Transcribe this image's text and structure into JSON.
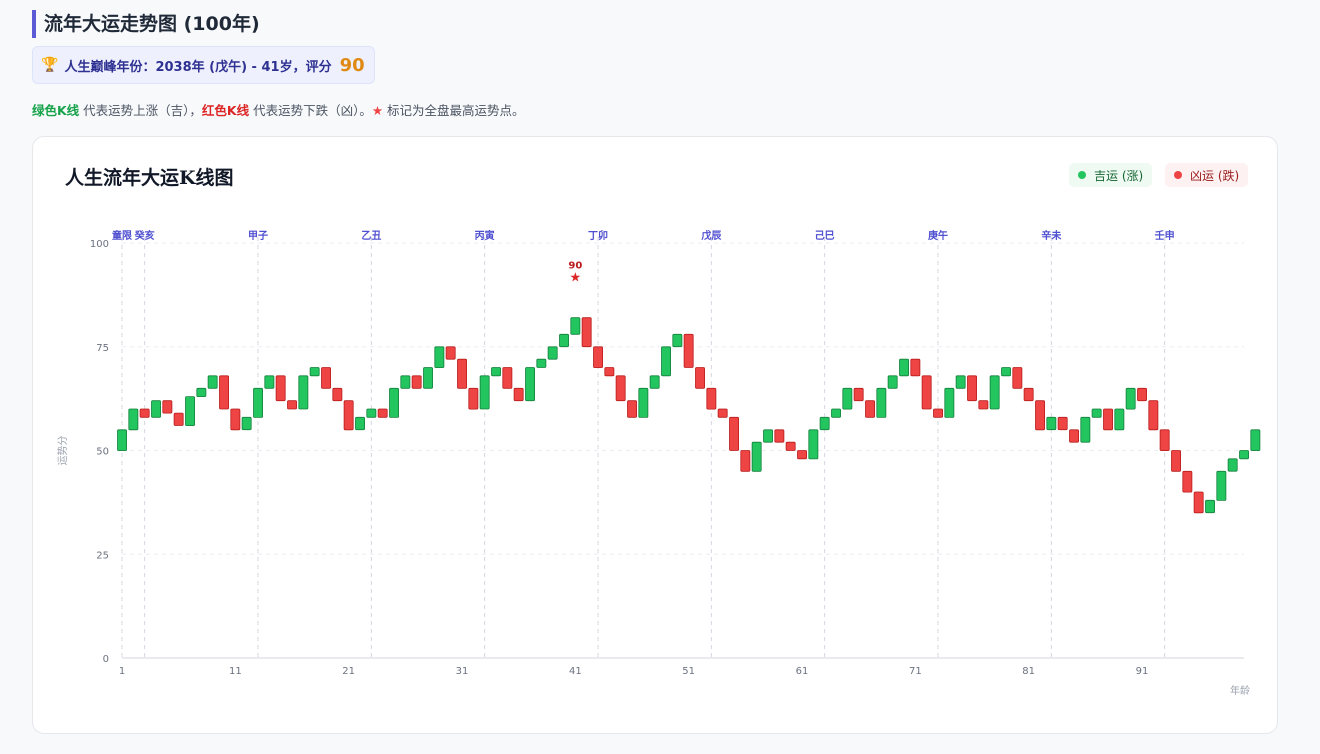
{
  "header": {
    "title": "流年大运走势图 (100年)",
    "peak_label": "人生巅峰年份：2038年 (戊午) - 41岁，评分",
    "peak_score": "90",
    "trophy_icon": "trophy-icon"
  },
  "description": {
    "green_label": "绿色K线",
    "green_text": " 代表运势上涨（吉），",
    "red_label": "红色K线",
    "red_text": " 代表运势下跌（凶）。",
    "star_glyph": "★",
    "star_text": " 标记为全盘最高运势点。"
  },
  "card": {
    "title": "人生流年大运K线图",
    "legend": [
      {
        "label": "吉运 (涨)",
        "color": "#22c55e"
      },
      {
        "label": "凶运 (跌)",
        "color": "#ef4444"
      }
    ]
  },
  "chart_data": {
    "type": "candlestick",
    "ylabel": "运势分",
    "xlabel": "年龄",
    "ylim": [
      0,
      100
    ],
    "yticks": [
      0,
      25,
      50,
      75,
      100
    ],
    "xlim": [
      1,
      100
    ],
    "xticks": [
      1,
      11,
      21,
      31,
      41,
      51,
      61,
      71,
      81,
      91
    ],
    "grid": true,
    "colors": {
      "up": "#22c55e",
      "down": "#ef4444",
      "up_edge": "#15803d",
      "down_edge": "#b91c1c"
    },
    "dayun": [
      {
        "label": "童限",
        "age": 1
      },
      {
        "label": "癸亥",
        "age": 3
      },
      {
        "label": "甲子",
        "age": 13
      },
      {
        "label": "乙丑",
        "age": 23
      },
      {
        "label": "丙寅",
        "age": 33
      },
      {
        "label": "丁卯",
        "age": 43
      },
      {
        "label": "戊辰",
        "age": 53
      },
      {
        "label": "己巳",
        "age": 63
      },
      {
        "label": "庚午",
        "age": 73
      },
      {
        "label": "辛未",
        "age": 83
      },
      {
        "label": "壬申",
        "age": 93
      }
    ],
    "peak": {
      "age": 41,
      "value": 90
    },
    "candles": [
      [
        50,
        55
      ],
      [
        55,
        60
      ],
      [
        60,
        58
      ],
      [
        58,
        62
      ],
      [
        62,
        59
      ],
      [
        59,
        56
      ],
      [
        56,
        63
      ],
      [
        63,
        65
      ],
      [
        65,
        68
      ],
      [
        68,
        60
      ],
      [
        60,
        55
      ],
      [
        55,
        58
      ],
      [
        58,
        65
      ],
      [
        65,
        68
      ],
      [
        68,
        62
      ],
      [
        62,
        60
      ],
      [
        60,
        68
      ],
      [
        68,
        70
      ],
      [
        70,
        65
      ],
      [
        65,
        62
      ],
      [
        62,
        55
      ],
      [
        55,
        58
      ],
      [
        58,
        60
      ],
      [
        60,
        58
      ],
      [
        58,
        65
      ],
      [
        65,
        68
      ],
      [
        68,
        65
      ],
      [
        65,
        70
      ],
      [
        70,
        75
      ],
      [
        75,
        72
      ],
      [
        72,
        65
      ],
      [
        65,
        60
      ],
      [
        60,
        68
      ],
      [
        68,
        70
      ],
      [
        70,
        65
      ],
      [
        65,
        62
      ],
      [
        62,
        70
      ],
      [
        70,
        72
      ],
      [
        72,
        75
      ],
      [
        75,
        78
      ],
      [
        78,
        82
      ],
      [
        82,
        75
      ],
      [
        75,
        70
      ],
      [
        70,
        68
      ],
      [
        68,
        62
      ],
      [
        62,
        58
      ],
      [
        58,
        65
      ],
      [
        65,
        68
      ],
      [
        68,
        75
      ],
      [
        75,
        78
      ],
      [
        78,
        70
      ],
      [
        70,
        65
      ],
      [
        65,
        60
      ],
      [
        60,
        58
      ],
      [
        58,
        50
      ],
      [
        50,
        45
      ],
      [
        45,
        52
      ],
      [
        52,
        55
      ],
      [
        55,
        52
      ],
      [
        52,
        50
      ],
      [
        50,
        48
      ],
      [
        48,
        55
      ],
      [
        55,
        58
      ],
      [
        58,
        60
      ],
      [
        60,
        65
      ],
      [
        65,
        62
      ],
      [
        62,
        58
      ],
      [
        58,
        65
      ],
      [
        65,
        68
      ],
      [
        68,
        72
      ],
      [
        72,
        68
      ],
      [
        68,
        60
      ],
      [
        60,
        58
      ],
      [
        58,
        65
      ],
      [
        65,
        68
      ],
      [
        68,
        62
      ],
      [
        62,
        60
      ],
      [
        60,
        68
      ],
      [
        68,
        70
      ],
      [
        70,
        65
      ],
      [
        65,
        62
      ],
      [
        62,
        55
      ],
      [
        55,
        58
      ],
      [
        58,
        55
      ],
      [
        55,
        52
      ],
      [
        52,
        58
      ],
      [
        58,
        60
      ],
      [
        60,
        55
      ],
      [
        55,
        60
      ],
      [
        60,
        65
      ],
      [
        65,
        62
      ],
      [
        62,
        55
      ],
      [
        55,
        50
      ],
      [
        50,
        45
      ],
      [
        45,
        40
      ],
      [
        40,
        35
      ],
      [
        35,
        38
      ],
      [
        38,
        45
      ],
      [
        45,
        48
      ],
      [
        48,
        50
      ],
      [
        50,
        55
      ]
    ]
  }
}
